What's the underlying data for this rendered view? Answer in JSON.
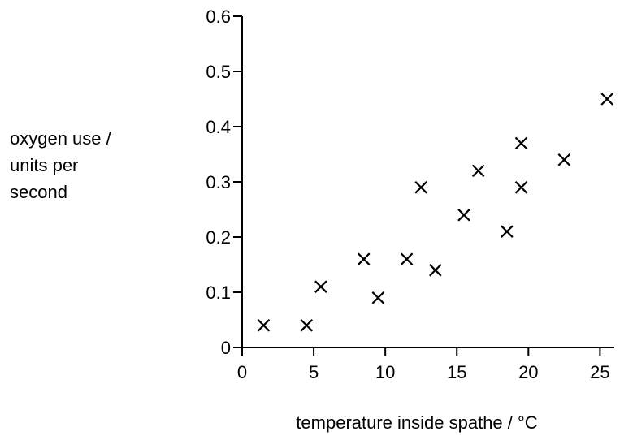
{
  "chart_data": {
    "type": "scatter",
    "title": "",
    "xlabel": "temperature inside spathe / °C",
    "ylabel_lines": [
      "oxygen use /",
      "units per",
      "second"
    ],
    "xlim": [
      0,
      26
    ],
    "ylim": [
      0,
      0.6
    ],
    "x_ticks": [
      0,
      5,
      10,
      15,
      20,
      25
    ],
    "y_ticks": [
      0,
      0.1,
      0.2,
      0.3,
      0.4,
      0.5,
      0.6
    ],
    "x_tick_labels": [
      "0",
      "5",
      "10",
      "15",
      "20",
      "25"
    ],
    "y_tick_labels": [
      "0",
      "0.1",
      "0.2",
      "0.3",
      "0.4",
      "0.5",
      "0.6"
    ],
    "marker": "x",
    "grid": false,
    "points": [
      {
        "x": 1.5,
        "y": 0.04
      },
      {
        "x": 4.5,
        "y": 0.04
      },
      {
        "x": 5.5,
        "y": 0.11
      },
      {
        "x": 8.5,
        "y": 0.16
      },
      {
        "x": 9.5,
        "y": 0.09
      },
      {
        "x": 11.5,
        "y": 0.16
      },
      {
        "x": 12.5,
        "y": 0.29
      },
      {
        "x": 13.5,
        "y": 0.14
      },
      {
        "x": 15.5,
        "y": 0.24
      },
      {
        "x": 16.5,
        "y": 0.32
      },
      {
        "x": 18.5,
        "y": 0.21
      },
      {
        "x": 19.5,
        "y": 0.37
      },
      {
        "x": 19.5,
        "y": 0.29
      },
      {
        "x": 22.5,
        "y": 0.34
      },
      {
        "x": 25.5,
        "y": 0.45
      }
    ]
  }
}
